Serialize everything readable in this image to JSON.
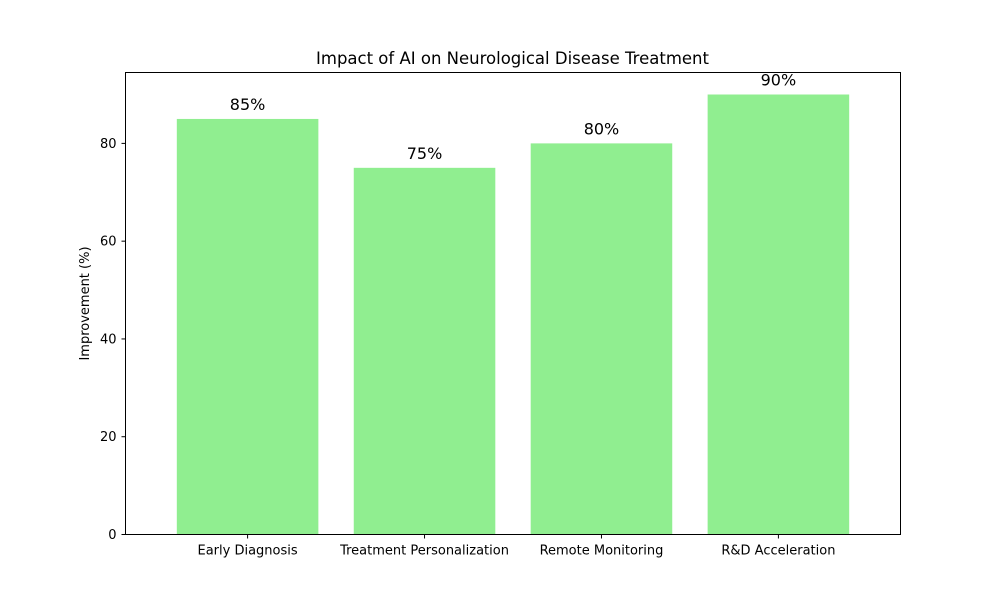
{
  "chart_data": {
    "type": "bar",
    "title": "Impact of AI on Neurological Disease Treatment",
    "xlabel": "",
    "ylabel": "Improvement (%)",
    "categories": [
      "Early Diagnosis",
      "Treatment Personalization",
      "Remote Monitoring",
      "R&D Acceleration"
    ],
    "values": [
      85,
      75,
      80,
      90
    ],
    "data_labels": [
      "85%",
      "75%",
      "80%",
      "90%"
    ],
    "ylim": [
      0,
      94.5
    ],
    "yticks": [
      0,
      20,
      40,
      60,
      80
    ],
    "grid": false,
    "legend": "none",
    "bar_color": "#90ee90"
  }
}
